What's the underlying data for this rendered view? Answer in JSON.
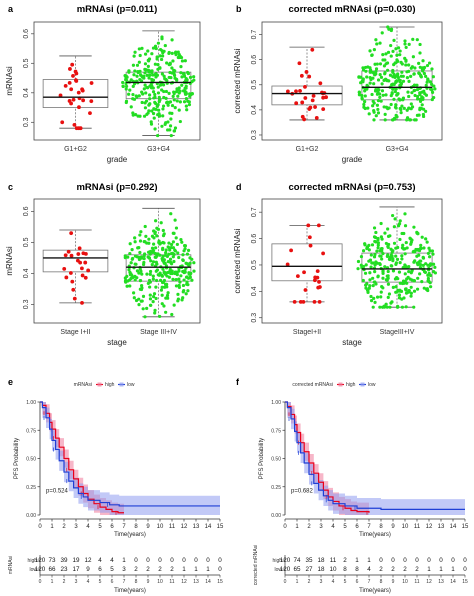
{
  "panel_labels": [
    "a",
    "b",
    "c",
    "d",
    "e",
    "f"
  ],
  "colors": {
    "high": "#e8001c",
    "low": "#1f3fd6",
    "red_points": "#e81010",
    "green_points": "#22dd22",
    "high_band": "#f07a9a",
    "low_band": "#8f9df0"
  },
  "chart_data": [
    {
      "id": "a",
      "type": "box-dot",
      "title": "mRNAsi (p=0.011)",
      "xlabel": "grade",
      "ylabel": "mRNAsi",
      "ylim": [
        0.24,
        0.64
      ],
      "yticks": [
        0.3,
        0.4,
        0.5,
        0.6
      ],
      "ytick_labels": [
        "0.3",
        "0.4",
        "0.5",
        "0.6"
      ],
      "groups": [
        {
          "name": "G1+G2",
          "color": "red",
          "n": 28,
          "min": 0.28,
          "q1": 0.35,
          "median": 0.385,
          "q3": 0.445,
          "max": 0.525
        },
        {
          "name": "G3+G4",
          "color": "green",
          "n": 300,
          "min": 0.255,
          "q1": 0.38,
          "median": 0.435,
          "q3": 0.47,
          "max": 0.61
        }
      ]
    },
    {
      "id": "b",
      "type": "box-dot",
      "title": "corrected mRNAsi (p=0.030)",
      "xlabel": "grade",
      "ylabel": "corrected mRNAsi",
      "ylim": [
        0.28,
        0.75
      ],
      "yticks": [
        0.3,
        0.4,
        0.5,
        0.6,
        0.7
      ],
      "ytick_labels": [
        "0.3",
        "0.4",
        "0.5",
        "0.6",
        "0.7"
      ],
      "groups": [
        {
          "name": "G1+G2",
          "color": "red",
          "n": 28,
          "min": 0.36,
          "q1": 0.42,
          "median": 0.465,
          "q3": 0.495,
          "max": 0.65
        },
        {
          "name": "G3+G4",
          "color": "green",
          "n": 300,
          "min": 0.36,
          "q1": 0.44,
          "median": 0.49,
          "q3": 0.555,
          "max": 0.73
        }
      ]
    },
    {
      "id": "c",
      "type": "box-dot",
      "title": "mRNAsi (p=0.292)",
      "xlabel": "stage",
      "ylabel": "mRNAsi",
      "ylim": [
        0.24,
        0.64
      ],
      "yticks": [
        0.3,
        0.4,
        0.5,
        0.6
      ],
      "ytick_labels": [
        "0.3",
        "0.4",
        "0.5",
        "0.6"
      ],
      "groups": [
        {
          "name": "Stage I+II",
          "color": "red",
          "n": 22,
          "min": 0.305,
          "q1": 0.405,
          "median": 0.45,
          "q3": 0.475,
          "max": 0.54
        },
        {
          "name": "Stage III+IV",
          "color": "green",
          "n": 300,
          "min": 0.26,
          "q1": 0.375,
          "median": 0.42,
          "q3": 0.46,
          "max": 0.61
        }
      ]
    },
    {
      "id": "d",
      "type": "box-dot",
      "title": "corrected mRNAsi (p=0.753)",
      "xlabel": "stage",
      "ylabel": "corrected mRNAsi",
      "ylim": [
        0.28,
        0.75
      ],
      "yticks": [
        0.3,
        0.4,
        0.5,
        0.6,
        0.7
      ],
      "ytick_labels": [
        "0.3",
        "0.4",
        "0.5",
        "0.6",
        "0.7"
      ],
      "groups": [
        {
          "name": "StageI+II",
          "color": "red",
          "n": 22,
          "min": 0.36,
          "q1": 0.44,
          "median": 0.495,
          "q3": 0.58,
          "max": 0.65
        },
        {
          "name": "StageIII+IV",
          "color": "green",
          "n": 300,
          "min": 0.34,
          "q1": 0.435,
          "median": 0.485,
          "q3": 0.545,
          "max": 0.72
        }
      ]
    },
    {
      "id": "e",
      "type": "survival",
      "legend_title": "mRNAsi",
      "legend_labels": [
        "high",
        "low"
      ],
      "ylabel": "PFS Probability",
      "xlabel": "Time(years)",
      "xlim": [
        0,
        15
      ],
      "xticks": [
        0,
        1,
        2,
        3,
        4,
        5,
        6,
        7,
        8,
        9,
        10,
        11,
        12,
        13,
        14,
        15
      ],
      "ylim": [
        0,
        1
      ],
      "yticks": [
        0,
        0.25,
        0.5,
        0.75,
        1
      ],
      "ytick_labels": [
        "0.00",
        "0.25",
        "0.50",
        "0.75",
        "1.00"
      ],
      "pvalue_text": "p=0.524",
      "series": [
        {
          "name": "high",
          "x": [
            0,
            0.2,
            0.5,
            0.8,
            1.0,
            1.3,
            1.6,
            2.0,
            2.4,
            2.8,
            3.2,
            3.6,
            4.0,
            4.5,
            5.0,
            5.5,
            6.0,
            6.5,
            7.0
          ],
          "y": [
            1.0,
            0.97,
            0.9,
            0.82,
            0.76,
            0.68,
            0.6,
            0.5,
            0.4,
            0.32,
            0.25,
            0.19,
            0.14,
            0.1,
            0.07,
            0.05,
            0.03,
            0.02,
            0.02
          ],
          "band": 0.08
        },
        {
          "name": "low",
          "x": [
            0,
            0.2,
            0.5,
            0.8,
            1.0,
            1.3,
            1.6,
            2.0,
            2.4,
            2.8,
            3.2,
            3.6,
            4.0,
            5.0,
            5.8,
            6.6,
            15.0
          ],
          "y": [
            1.0,
            0.95,
            0.86,
            0.76,
            0.66,
            0.58,
            0.48,
            0.38,
            0.3,
            0.24,
            0.19,
            0.16,
            0.13,
            0.11,
            0.09,
            0.08,
            0.08
          ],
          "band": 0.09
        }
      ],
      "risk_table": {
        "ylabel": "mRNAsi",
        "xlabel": "Time(years)",
        "rows": [
          {
            "label": "high",
            "counts": [
              "120",
              "73",
              "39",
              "19",
              "12",
              "4",
              "4",
              "1",
              "0",
              "0",
              "0",
              "0",
              "0",
              "0",
              "0",
              "0"
            ]
          },
          {
            "label": "low",
            "counts": [
              "120",
              "66",
              "23",
              "17",
              "9",
              "6",
              "5",
              "3",
              "2",
              "2",
              "2",
              "2",
              "1",
              "1",
              "1",
              "0"
            ]
          }
        ]
      }
    },
    {
      "id": "f",
      "type": "survival",
      "legend_title": "corrected mRNAsi",
      "legend_labels": [
        "high",
        "low"
      ],
      "ylabel": "PFS Probability",
      "xlabel": "Time(years)",
      "xlim": [
        0,
        15
      ],
      "xticks": [
        0,
        1,
        2,
        3,
        4,
        5,
        6,
        7,
        8,
        9,
        10,
        11,
        12,
        13,
        14,
        15
      ],
      "ylim": [
        0,
        1
      ],
      "yticks": [
        0,
        0.25,
        0.5,
        0.75,
        1
      ],
      "ytick_labels": [
        "0.00",
        "0.25",
        "0.50",
        "0.75",
        "1.00"
      ],
      "pvalue_text": "p=0.682",
      "series": [
        {
          "name": "high",
          "x": [
            0,
            0.2,
            0.5,
            0.8,
            1.0,
            1.3,
            1.6,
            2.0,
            2.4,
            2.8,
            3.2,
            3.6,
            4.0,
            4.5,
            5.0,
            5.5,
            6.0,
            7.0
          ],
          "y": [
            1.0,
            0.96,
            0.89,
            0.8,
            0.73,
            0.64,
            0.56,
            0.46,
            0.37,
            0.29,
            0.22,
            0.16,
            0.12,
            0.08,
            0.06,
            0.04,
            0.03,
            0.02
          ],
          "band": 0.08
        },
        {
          "name": "low",
          "x": [
            0,
            0.2,
            0.5,
            0.8,
            1.0,
            1.3,
            1.6,
            2.0,
            2.4,
            2.8,
            3.2,
            3.6,
            4.0,
            5.0,
            6.0,
            8.0,
            15.0
          ],
          "y": [
            1.0,
            0.95,
            0.85,
            0.74,
            0.64,
            0.55,
            0.46,
            0.36,
            0.28,
            0.22,
            0.17,
            0.13,
            0.1,
            0.08,
            0.06,
            0.05,
            0.05
          ],
          "band": 0.09
        }
      ],
      "risk_table": {
        "ylabel": "corrected mRNAsi",
        "xlabel": "Time(years)",
        "rows": [
          {
            "label": "high",
            "counts": [
              "120",
              "74",
              "35",
              "18",
              "11",
              "2",
              "1",
              "1",
              "0",
              "0",
              "0",
              "0",
              "0",
              "0",
              "0",
              "0"
            ]
          },
          {
            "label": "low",
            "counts": [
              "120",
              "65",
              "27",
              "18",
              "10",
              "8",
              "8",
              "4",
              "2",
              "2",
              "2",
              "2",
              "1",
              "1",
              "1",
              "0"
            ]
          }
        ]
      }
    }
  ]
}
